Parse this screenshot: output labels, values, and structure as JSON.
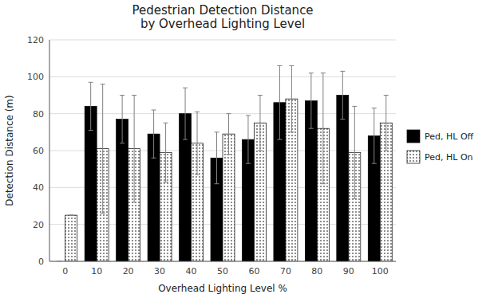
{
  "chart_data": {
    "type": "bar",
    "title": "Pedestrian Detection Distance\nby Overhead Lighting Level",
    "xlabel": "Overhead Lighting Level %",
    "ylabel": "Detection Distance (m)",
    "categories": [
      0,
      10,
      20,
      30,
      40,
      50,
      60,
      70,
      80,
      90,
      100
    ],
    "series": [
      {
        "name": "Ped, HL Off",
        "color": "#000000",
        "values": [
          0,
          84,
          77,
          69,
          80,
          56,
          66,
          86,
          87,
          90,
          68
        ],
        "errors": [
          0,
          13,
          13,
          13,
          14,
          14,
          13,
          20,
          15,
          13,
          15
        ]
      },
      {
        "name": "Ped, HL On",
        "color": "#ffffff",
        "values": [
          25,
          61,
          61,
          59,
          64,
          69,
          75,
          88,
          72,
          59,
          75
        ],
        "errors": [
          0,
          35,
          29,
          16,
          17,
          11,
          15,
          18,
          30,
          25,
          15
        ]
      }
    ],
    "ylim": [
      0,
      120
    ],
    "yticks": [
      0,
      20,
      40,
      60,
      80,
      100,
      120
    ],
    "grid": true,
    "legend": "right"
  }
}
